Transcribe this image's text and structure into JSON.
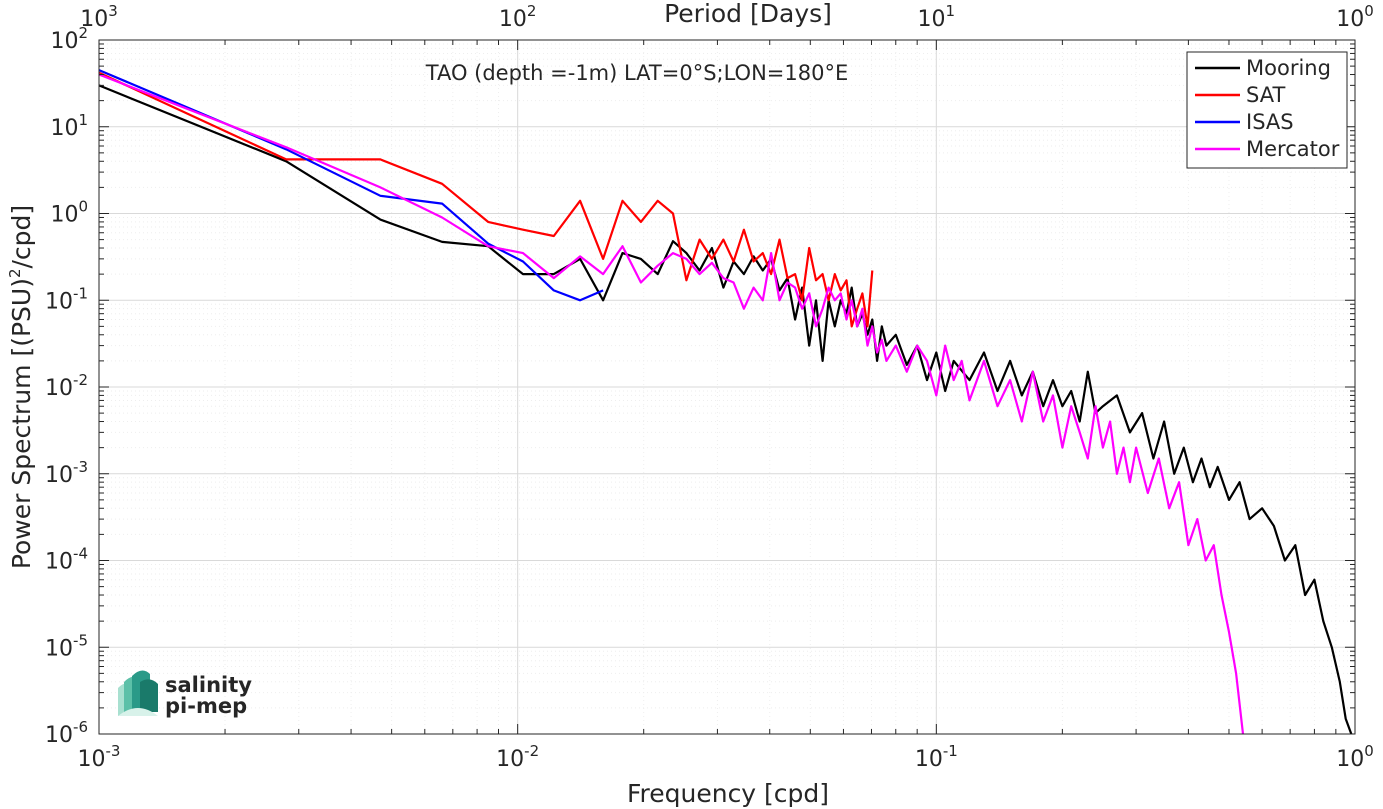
{
  "chart_data": {
    "type": "line",
    "title": "TAO (depth =-1m) LAT=0°S;LON=180°E",
    "xlabel": "Frequency [cpd]",
    "x2label": "Period [Days]",
    "ylabel_main": "Power Spectrum [(PSU)",
    "ylabel_exp": "2",
    "ylabel_tail": "/cpd]",
    "x_scale": "log",
    "y_scale": "log",
    "xlim": [
      0.001,
      1
    ],
    "ylim": [
      1e-06,
      100
    ],
    "grid": true,
    "legend_position": "top-right",
    "x_ticks": [
      {
        "base": "10",
        "exp": "-3"
      },
      {
        "base": "10",
        "exp": "-2"
      },
      {
        "base": "10",
        "exp": "-1"
      },
      {
        "base": "10",
        "exp": "0"
      }
    ],
    "x2_ticks": [
      {
        "base": "10",
        "exp": "3"
      },
      {
        "base": "10",
        "exp": "2"
      },
      {
        "base": "10",
        "exp": "1"
      },
      {
        "base": "10",
        "exp": "0"
      }
    ],
    "y_ticks": [
      {
        "base": "10",
        "exp": "2"
      },
      {
        "base": "10",
        "exp": "1"
      },
      {
        "base": "10",
        "exp": "0"
      },
      {
        "base": "10",
        "exp": "-1"
      },
      {
        "base": "10",
        "exp": "-2"
      },
      {
        "base": "10",
        "exp": "-3"
      },
      {
        "base": "10",
        "exp": "-4"
      },
      {
        "base": "10",
        "exp": "-5"
      },
      {
        "base": "10",
        "exp": "-6"
      }
    ],
    "series": [
      {
        "name": "Mooring",
        "color": "#000000",
        "points": [
          [
            0.001,
            30
          ],
          [
            0.0028,
            4.0
          ],
          [
            0.0047,
            0.85
          ],
          [
            0.0066,
            0.47
          ],
          [
            0.0085,
            0.42
          ],
          [
            0.0103,
            0.2
          ],
          [
            0.0122,
            0.2
          ],
          [
            0.0141,
            0.3
          ],
          [
            0.016,
            0.1
          ],
          [
            0.0178,
            0.35
          ],
          [
            0.0197,
            0.3
          ],
          [
            0.0216,
            0.2
          ],
          [
            0.0235,
            0.48
          ],
          [
            0.0253,
            0.35
          ],
          [
            0.0272,
            0.22
          ],
          [
            0.0291,
            0.4
          ],
          [
            0.031,
            0.14
          ],
          [
            0.0328,
            0.28
          ],
          [
            0.0347,
            0.2
          ],
          [
            0.0366,
            0.32
          ],
          [
            0.0385,
            0.22
          ],
          [
            0.0403,
            0.3
          ],
          [
            0.0422,
            0.13
          ],
          [
            0.0441,
            0.18
          ],
          [
            0.046,
            0.06
          ],
          [
            0.0478,
            0.14
          ],
          [
            0.0497,
            0.03
          ],
          [
            0.0516,
            0.1
          ],
          [
            0.0535,
            0.02
          ],
          [
            0.0553,
            0.1
          ],
          [
            0.0572,
            0.05
          ],
          [
            0.0591,
            0.1
          ],
          [
            0.061,
            0.07
          ],
          [
            0.0628,
            0.14
          ],
          [
            0.0647,
            0.05
          ],
          [
            0.0666,
            0.07
          ],
          [
            0.0685,
            0.04
          ],
          [
            0.0703,
            0.06
          ],
          [
            0.0722,
            0.02
          ],
          [
            0.0741,
            0.05
          ],
          [
            0.076,
            0.03
          ],
          [
            0.08,
            0.04
          ],
          [
            0.085,
            0.018
          ],
          [
            0.09,
            0.03
          ],
          [
            0.095,
            0.012
          ],
          [
            0.1,
            0.025
          ],
          [
            0.105,
            0.009
          ],
          [
            0.11,
            0.02
          ],
          [
            0.12,
            0.012
          ],
          [
            0.13,
            0.025
          ],
          [
            0.14,
            0.009
          ],
          [
            0.15,
            0.02
          ],
          [
            0.16,
            0.008
          ],
          [
            0.17,
            0.015
          ],
          [
            0.18,
            0.006
          ],
          [
            0.19,
            0.012
          ],
          [
            0.2,
            0.006
          ],
          [
            0.21,
            0.009
          ],
          [
            0.22,
            0.004
          ],
          [
            0.23,
            0.015
          ],
          [
            0.24,
            0.005
          ],
          [
            0.25,
            0.006
          ],
          [
            0.27,
            0.008
          ],
          [
            0.29,
            0.003
          ],
          [
            0.31,
            0.005
          ],
          [
            0.33,
            0.0015
          ],
          [
            0.35,
            0.004
          ],
          [
            0.37,
            0.001
          ],
          [
            0.39,
            0.002
          ],
          [
            0.41,
            0.0008
          ],
          [
            0.43,
            0.0015
          ],
          [
            0.45,
            0.0007
          ],
          [
            0.47,
            0.0012
          ],
          [
            0.5,
            0.0005
          ],
          [
            0.53,
            0.0008
          ],
          [
            0.56,
            0.0003
          ],
          [
            0.6,
            0.0004
          ],
          [
            0.64,
            0.00025
          ],
          [
            0.68,
            0.0001
          ],
          [
            0.72,
            0.00015
          ],
          [
            0.76,
            4e-05
          ],
          [
            0.8,
            6e-05
          ],
          [
            0.84,
            2e-05
          ],
          [
            0.88,
            1e-05
          ],
          [
            0.92,
            4e-06
          ],
          [
            0.95,
            1.5e-06
          ],
          [
            0.98,
            1e-06
          ]
        ]
      },
      {
        "name": "SAT",
        "color": "#ff0000",
        "points": [
          [
            0.001,
            42
          ],
          [
            0.0028,
            4.2
          ],
          [
            0.0047,
            4.2
          ],
          [
            0.0066,
            2.2
          ],
          [
            0.0085,
            0.8
          ],
          [
            0.0103,
            0.65
          ],
          [
            0.0122,
            0.55
          ],
          [
            0.0141,
            1.4
          ],
          [
            0.016,
            0.3
          ],
          [
            0.0178,
            1.4
          ],
          [
            0.0197,
            0.8
          ],
          [
            0.0216,
            1.4
          ],
          [
            0.0235,
            1.0
          ],
          [
            0.0253,
            0.17
          ],
          [
            0.0272,
            0.5
          ],
          [
            0.0291,
            0.3
          ],
          [
            0.031,
            0.5
          ],
          [
            0.0328,
            0.28
          ],
          [
            0.0347,
            0.65
          ],
          [
            0.0366,
            0.28
          ],
          [
            0.0385,
            0.35
          ],
          [
            0.0403,
            0.2
          ],
          [
            0.0422,
            0.5
          ],
          [
            0.0441,
            0.18
          ],
          [
            0.046,
            0.2
          ],
          [
            0.0478,
            0.1
          ],
          [
            0.0497,
            0.4
          ],
          [
            0.0516,
            0.17
          ],
          [
            0.0535,
            0.2
          ],
          [
            0.0553,
            0.1
          ],
          [
            0.0572,
            0.2
          ],
          [
            0.0591,
            0.13
          ],
          [
            0.061,
            0.17
          ],
          [
            0.0628,
            0.05
          ],
          [
            0.0647,
            0.08
          ],
          [
            0.0666,
            0.12
          ],
          [
            0.0685,
            0.05
          ],
          [
            0.0703,
            0.22
          ]
        ]
      },
      {
        "name": "ISAS",
        "color": "#0000ff",
        "points": [
          [
            0.001,
            45
          ],
          [
            0.0028,
            5.5
          ],
          [
            0.0047,
            1.6
          ],
          [
            0.0066,
            1.3
          ],
          [
            0.0085,
            0.45
          ],
          [
            0.0103,
            0.28
          ],
          [
            0.0122,
            0.13
          ],
          [
            0.0141,
            0.1
          ],
          [
            0.016,
            0.13
          ]
        ]
      },
      {
        "name": "Mercator",
        "color": "#ff00ff",
        "points": [
          [
            0.001,
            40
          ],
          [
            0.0028,
            5.8
          ],
          [
            0.0047,
            2.0
          ],
          [
            0.0066,
            0.9
          ],
          [
            0.0085,
            0.42
          ],
          [
            0.0103,
            0.35
          ],
          [
            0.0122,
            0.18
          ],
          [
            0.0141,
            0.32
          ],
          [
            0.016,
            0.2
          ],
          [
            0.0178,
            0.42
          ],
          [
            0.0197,
            0.16
          ],
          [
            0.0216,
            0.25
          ],
          [
            0.0235,
            0.35
          ],
          [
            0.0253,
            0.3
          ],
          [
            0.0272,
            0.2
          ],
          [
            0.0291,
            0.27
          ],
          [
            0.031,
            0.18
          ],
          [
            0.0328,
            0.16
          ],
          [
            0.0347,
            0.08
          ],
          [
            0.0366,
            0.14
          ],
          [
            0.0385,
            0.1
          ],
          [
            0.0403,
            0.35
          ],
          [
            0.0422,
            0.1
          ],
          [
            0.0441,
            0.16
          ],
          [
            0.046,
            0.14
          ],
          [
            0.0478,
            0.08
          ],
          [
            0.0497,
            0.12
          ],
          [
            0.0516,
            0.05
          ],
          [
            0.0535,
            0.08
          ],
          [
            0.0553,
            0.14
          ],
          [
            0.0572,
            0.1
          ],
          [
            0.0591,
            0.12
          ],
          [
            0.061,
            0.06
          ],
          [
            0.0628,
            0.1
          ],
          [
            0.0647,
            0.05
          ],
          [
            0.0666,
            0.08
          ],
          [
            0.0685,
            0.03
          ],
          [
            0.0703,
            0.05
          ],
          [
            0.0722,
            0.025
          ],
          [
            0.0741,
            0.035
          ],
          [
            0.076,
            0.02
          ],
          [
            0.08,
            0.03
          ],
          [
            0.085,
            0.015
          ],
          [
            0.09,
            0.03
          ],
          [
            0.095,
            0.02
          ],
          [
            0.1,
            0.008
          ],
          [
            0.105,
            0.03
          ],
          [
            0.11,
            0.012
          ],
          [
            0.115,
            0.02
          ],
          [
            0.12,
            0.007
          ],
          [
            0.13,
            0.02
          ],
          [
            0.14,
            0.006
          ],
          [
            0.15,
            0.012
          ],
          [
            0.16,
            0.004
          ],
          [
            0.17,
            0.015
          ],
          [
            0.18,
            0.004
          ],
          [
            0.19,
            0.008
          ],
          [
            0.2,
            0.002
          ],
          [
            0.21,
            0.006
          ],
          [
            0.22,
            0.003
          ],
          [
            0.23,
            0.0015
          ],
          [
            0.24,
            0.006
          ],
          [
            0.25,
            0.002
          ],
          [
            0.26,
            0.004
          ],
          [
            0.27,
            0.001
          ],
          [
            0.28,
            0.002
          ],
          [
            0.29,
            0.0008
          ],
          [
            0.3,
            0.002
          ],
          [
            0.32,
            0.0006
          ],
          [
            0.34,
            0.0015
          ],
          [
            0.36,
            0.0004
          ],
          [
            0.38,
            0.0008
          ],
          [
            0.4,
            0.00015
          ],
          [
            0.42,
            0.0003
          ],
          [
            0.44,
            0.0001
          ],
          [
            0.46,
            0.00015
          ],
          [
            0.48,
            4e-05
          ],
          [
            0.5,
            1.5e-05
          ],
          [
            0.52,
            5e-06
          ],
          [
            0.54,
            1e-06
          ]
        ]
      }
    ]
  },
  "logo": {
    "line1": "salinity",
    "line2": "pi-mep",
    "text_color": "#1a9a8a"
  }
}
